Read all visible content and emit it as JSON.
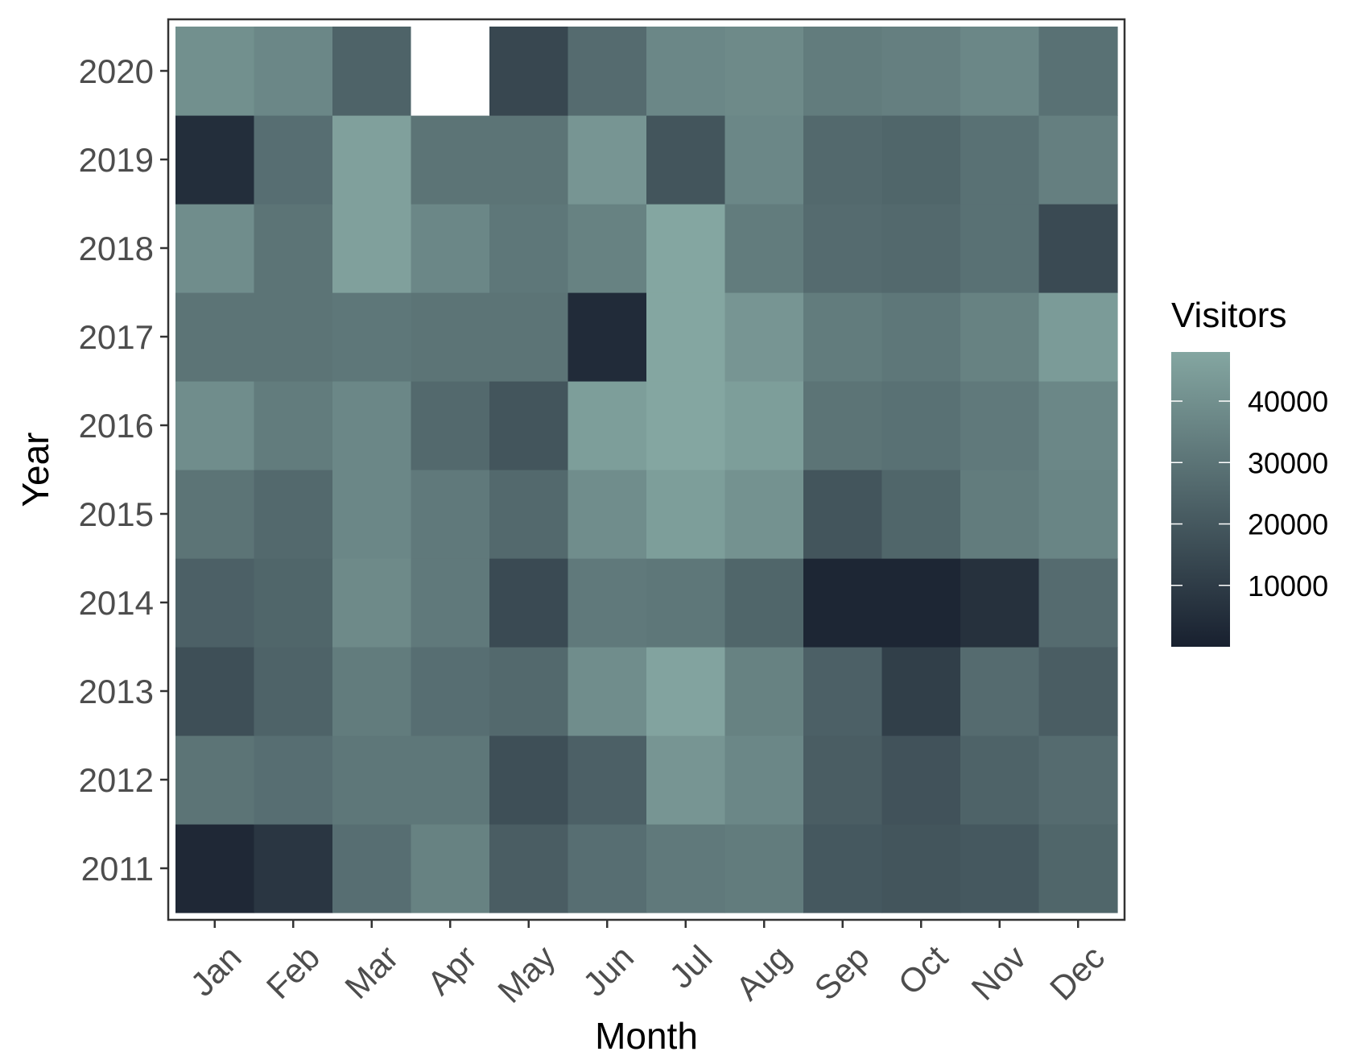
{
  "chart_data": {
    "type": "heatmap",
    "xlabel": "Month",
    "ylabel": "Year",
    "x_categories": [
      "Jan",
      "Feb",
      "Mar",
      "Apr",
      "May",
      "Jun",
      "Jul",
      "Aug",
      "Sep",
      "Oct",
      "Nov",
      "Dec"
    ],
    "y_categories": [
      "2011",
      "2012",
      "2013",
      "2014",
      "2015",
      "2016",
      "2017",
      "2018",
      "2019",
      "2020"
    ],
    "values": [
      [
        3000,
        8000,
        28000,
        35000,
        22000,
        28000,
        32000,
        33000,
        20000,
        19000,
        20000,
        25000
      ],
      [
        30000,
        28000,
        31000,
        31000,
        17000,
        23000,
        42000,
        37000,
        22000,
        18000,
        24000,
        27000
      ],
      [
        17000,
        24000,
        33000,
        28000,
        26000,
        39000,
        47000,
        35000,
        23000,
        11000,
        27000,
        22000
      ],
      [
        23000,
        25000,
        38000,
        32000,
        15000,
        32000,
        31000,
        25000,
        2000,
        2000,
        6000,
        27000
      ],
      [
        30000,
        26000,
        37000,
        32000,
        26000,
        39000,
        45000,
        41000,
        19000,
        25000,
        33000,
        36000
      ],
      [
        39000,
        33000,
        37000,
        26000,
        19000,
        45000,
        49000,
        45000,
        30000,
        29000,
        32000,
        37000
      ],
      [
        30000,
        30000,
        31000,
        30000,
        30000,
        4000,
        49000,
        42000,
        33000,
        31000,
        35000,
        44000
      ],
      [
        39000,
        30000,
        46000,
        37000,
        31000,
        35000,
        48000,
        33000,
        27000,
        26000,
        29000,
        15000
      ],
      [
        5000,
        28000,
        46000,
        30000,
        30000,
        42000,
        19000,
        37000,
        26000,
        25000,
        29000,
        34000
      ],
      [
        40000,
        37000,
        24000,
        null,
        14000,
        27000,
        37000,
        38000,
        33000,
        34000,
        37000,
        29000
      ]
    ],
    "legend": {
      "title": "Visitors",
      "ticks": [
        10000,
        20000,
        30000,
        40000
      ],
      "range": [
        0,
        48000
      ],
      "colors": {
        "low": "#18202f",
        "high": "#84a6a1"
      },
      "position": "right"
    },
    "missing_color": "#ffffff",
    "panel_border": true,
    "grid": false
  }
}
